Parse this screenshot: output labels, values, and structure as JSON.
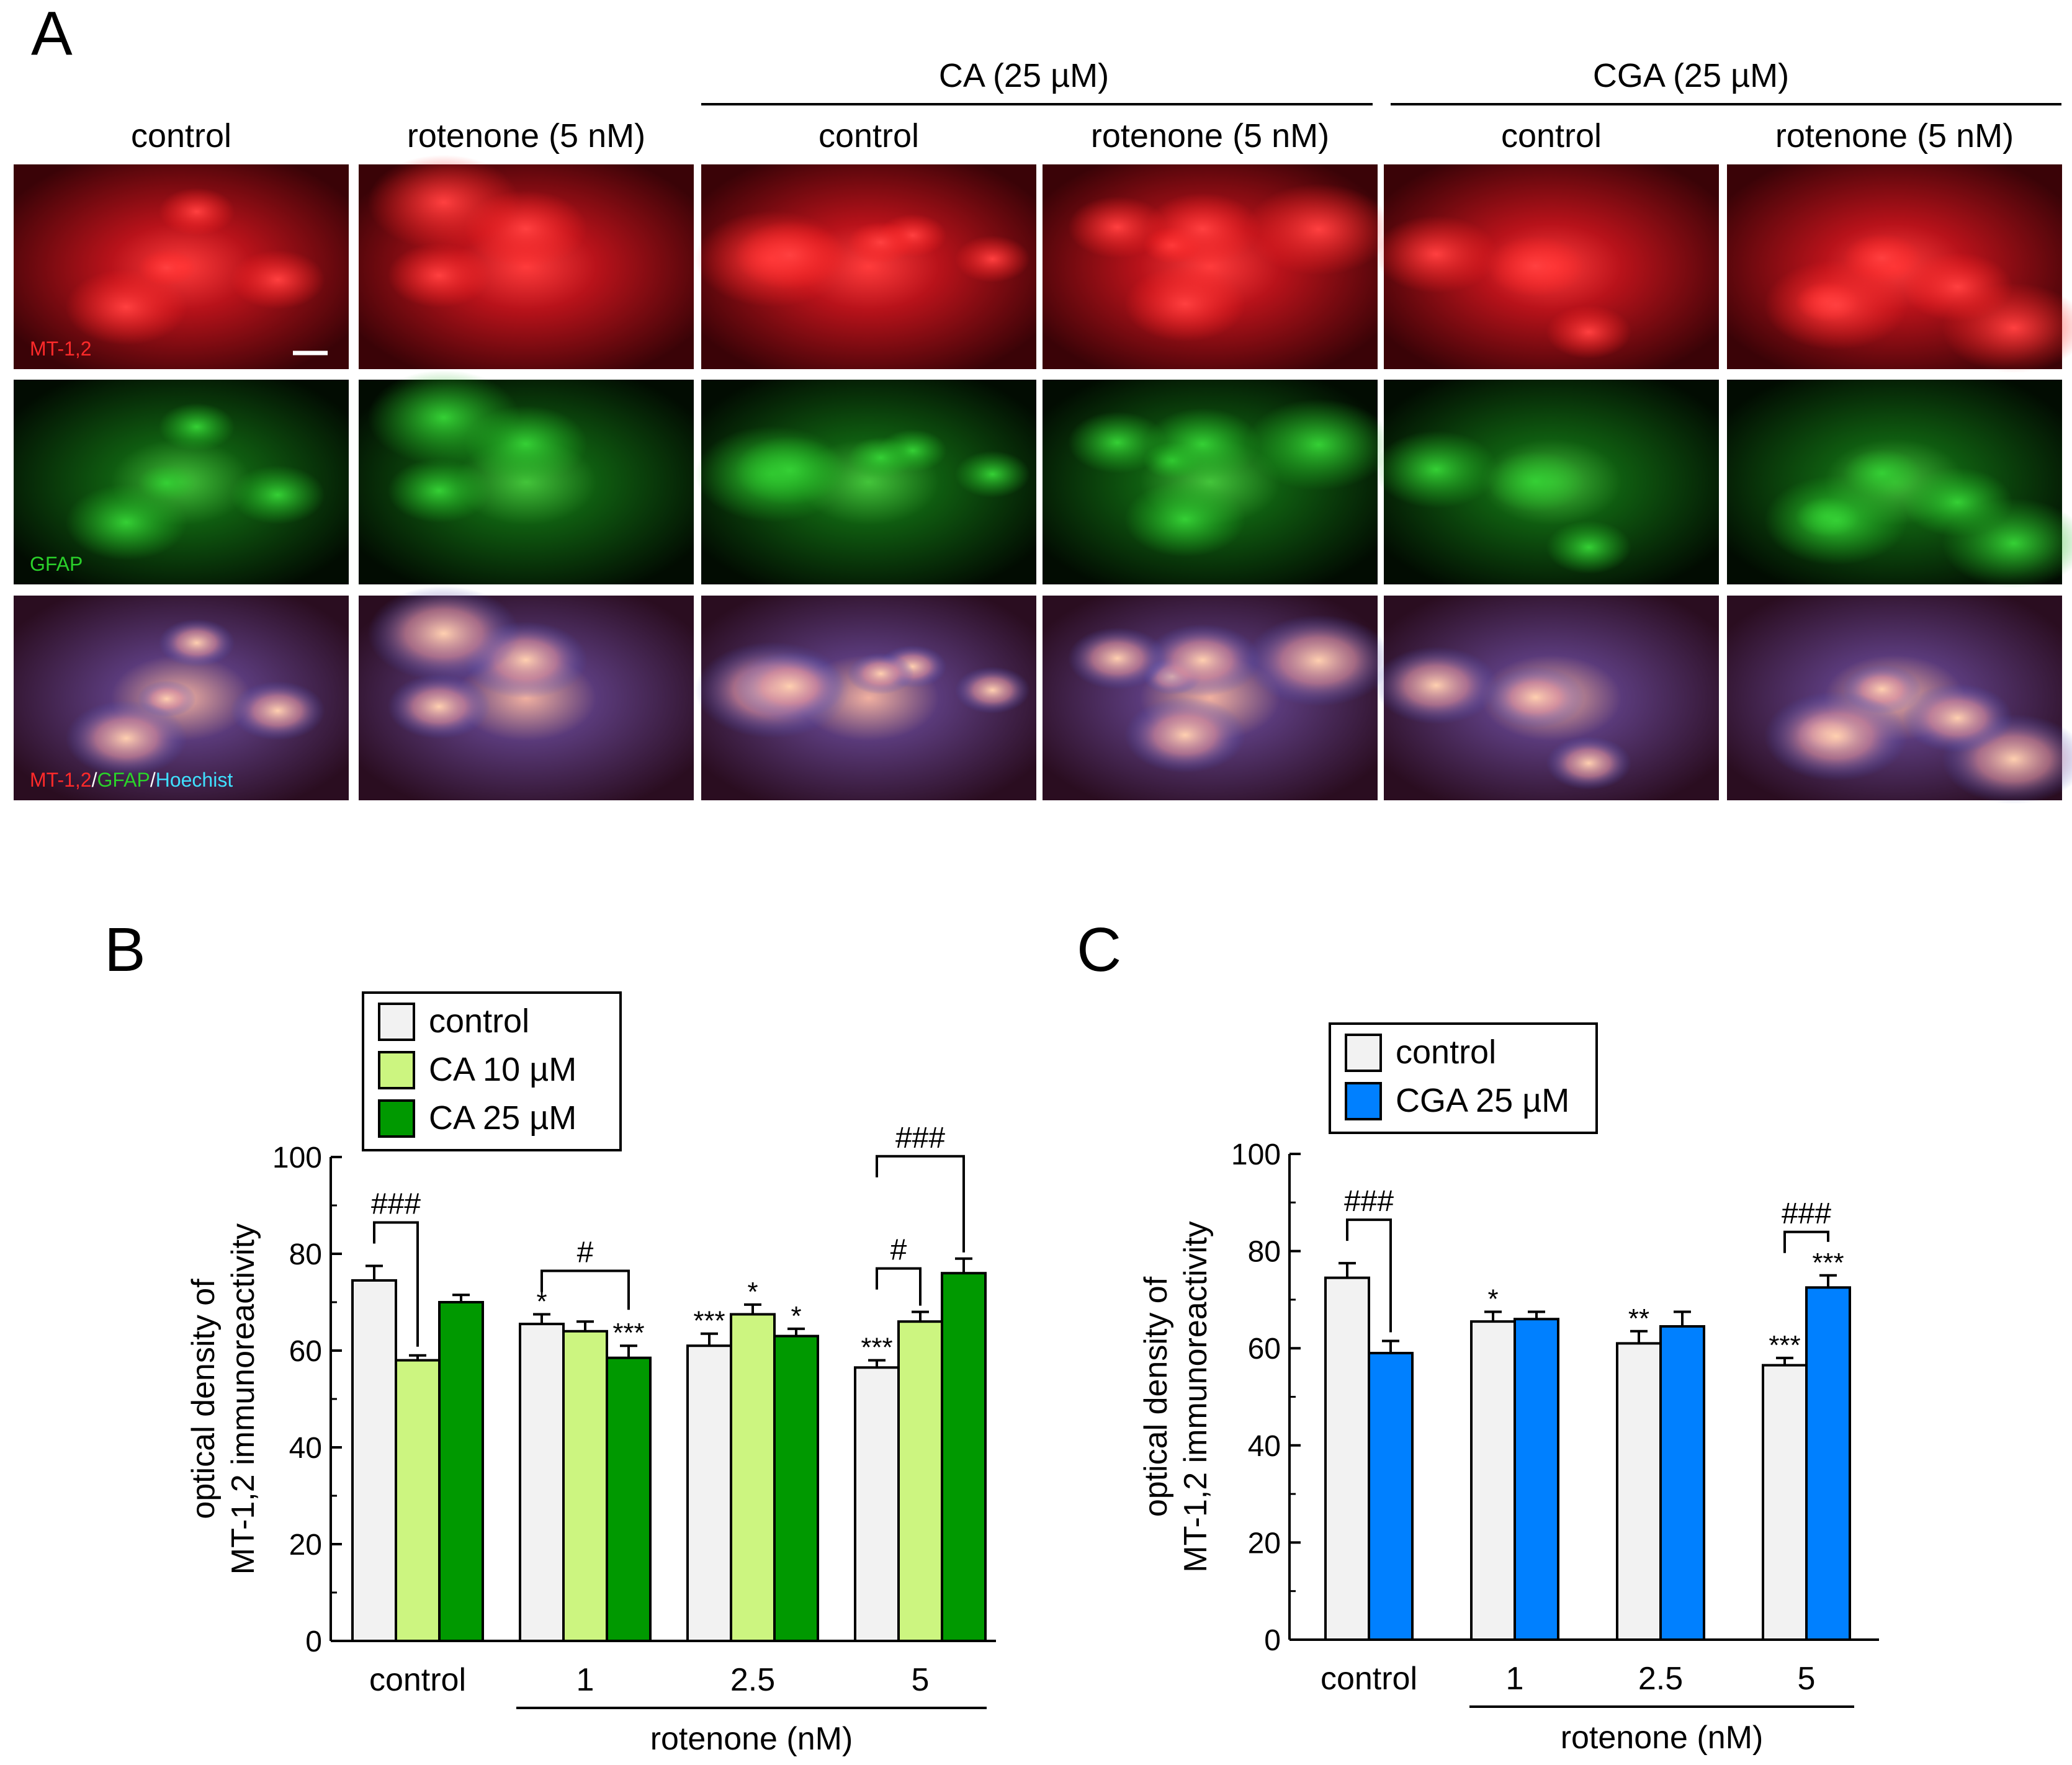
{
  "panel_a": {
    "letter": "A",
    "group_headers": [
      "CA (25 µM)",
      "CGA (25 µM)"
    ],
    "column_labels": [
      "control",
      "rotenone (5 nM)",
      "control",
      "rotenone (5 nM)",
      "control",
      "rotenone (5 nM)"
    ],
    "row_labels": {
      "mt": "MT-1,2",
      "gfap": "GFAP",
      "merge_parts": [
        "MT-1,2",
        "/",
        "GFAP",
        "/",
        "Hoechist"
      ]
    },
    "colors": {
      "red": "#ff2a2a",
      "green": "#2ad12a",
      "cyan": "#3fe0ff",
      "white": "#ffffff"
    }
  },
  "chart_data": [
    {
      "type": "bar",
      "letter": "B",
      "categories": [
        "control",
        "1",
        "2.5",
        "5"
      ],
      "ylabel_lines": [
        "optical density of",
        "MT-1,2 immunoreactivity"
      ],
      "xgroup_label": "rotenone (nM)",
      "ylim": [
        0,
        100
      ],
      "yticks": [
        0,
        20,
        40,
        60,
        80,
        100
      ],
      "legend": {
        "position": "top-left",
        "entries": [
          "control",
          "CA 10 µM",
          "CA 25 µM"
        ]
      },
      "series": [
        {
          "name": "control",
          "color": "#f2f2f2",
          "values": [
            74.5,
            65.5,
            61.0,
            56.5
          ],
          "errors": [
            3.0,
            2.0,
            2.5,
            1.5
          ],
          "stars": [
            "",
            "*",
            "***",
            "***"
          ]
        },
        {
          "name": "CA 10 µM",
          "color": "#ccf580",
          "values": [
            58.0,
            64.0,
            67.5,
            66.0
          ],
          "errors": [
            1.0,
            2.0,
            2.0,
            2.0
          ],
          "stars": [
            "",
            "",
            "*",
            ""
          ]
        },
        {
          "name": "CA 25 µM",
          "color": "#009900",
          "values": [
            70.0,
            58.5,
            63.0,
            76.0
          ],
          "errors": [
            1.5,
            2.5,
            1.5,
            3.0
          ],
          "stars": [
            "",
            "***",
            "*",
            ""
          ]
        }
      ],
      "significance": [
        {
          "label": "###",
          "group": 0,
          "from": 0,
          "to": 1
        },
        {
          "label": "#",
          "group": 1,
          "from": 0,
          "to": 2
        },
        {
          "label": "#",
          "group": 3,
          "from": 0,
          "to": 1
        },
        {
          "label": "###",
          "group": 3,
          "from": 0,
          "to": 2
        }
      ]
    },
    {
      "type": "bar",
      "letter": "C",
      "categories": [
        "control",
        "1",
        "2.5",
        "5"
      ],
      "ylabel_lines": [
        "optical density of",
        "MT-1,2 immunoreactivity"
      ],
      "xgroup_label": "rotenone (nM)",
      "ylim": [
        0,
        100
      ],
      "yticks": [
        0,
        20,
        40,
        60,
        80,
        100
      ],
      "legend": {
        "position": "top-left",
        "entries": [
          "control",
          "CGA 25 µM"
        ]
      },
      "series": [
        {
          "name": "control",
          "color": "#f2f2f2",
          "values": [
            74.5,
            65.5,
            61.0,
            56.5
          ],
          "errors": [
            3.0,
            2.0,
            2.5,
            1.5
          ],
          "stars": [
            "",
            "*",
            "**",
            "***"
          ]
        },
        {
          "name": "CGA 25 µM",
          "color": "#0080ff",
          "values": [
            59.0,
            66.0,
            64.5,
            72.5
          ],
          "errors": [
            2.5,
            1.5,
            3.0,
            2.5
          ],
          "stars": [
            "",
            "",
            "",
            "***"
          ]
        }
      ],
      "significance": [
        {
          "label": "###",
          "group": 0,
          "from": 0,
          "to": 1
        },
        {
          "label": "###",
          "group": 3,
          "from": 0,
          "to": 1
        }
      ]
    }
  ]
}
